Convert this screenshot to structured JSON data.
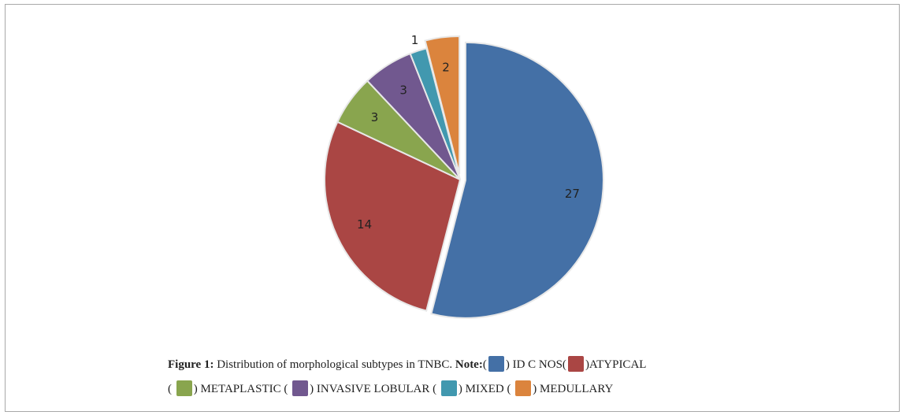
{
  "chart_data": {
    "type": "pie",
    "categories": [
      "ID C NOS",
      "ATYPICAL",
      "METAPLASTIC",
      "INVASIVE LOBULAR",
      "MIXED",
      "MEDULLARY"
    ],
    "values": [
      27,
      14,
      3,
      3,
      1,
      2
    ],
    "colors": [
      "#4470a6",
      "#aa4644",
      "#89a54e",
      "#71588f",
      "#4198af",
      "#db843d"
    ],
    "data_labels": [
      "27",
      "14",
      "3",
      "3",
      "1",
      "2"
    ],
    "exploded": [
      "ID C NOS",
      "MEDULLARY"
    ]
  },
  "caption": {
    "figure_label": "Figure 1:",
    "figure_text": "Distribution of morphological subtypes in TNBC.",
    "note_label": "Note:",
    "open_paren": "(",
    "close_paren": ")",
    "legend": [
      {
        "text": " ID C NOS(",
        "color": "#4470a6"
      },
      {
        "text": ")ATYPICAL",
        "color": "#aa4644"
      },
      {
        "text": ") METAPLASTIC (",
        "color": "#89a54e"
      },
      {
        "text": ") INVASIVE LOBULAR (",
        "color": "#71588f"
      },
      {
        "text": ") MIXED (",
        "color": "#4198af"
      },
      {
        "text": ") MEDULLARY",
        "color": "#db843d"
      }
    ]
  }
}
